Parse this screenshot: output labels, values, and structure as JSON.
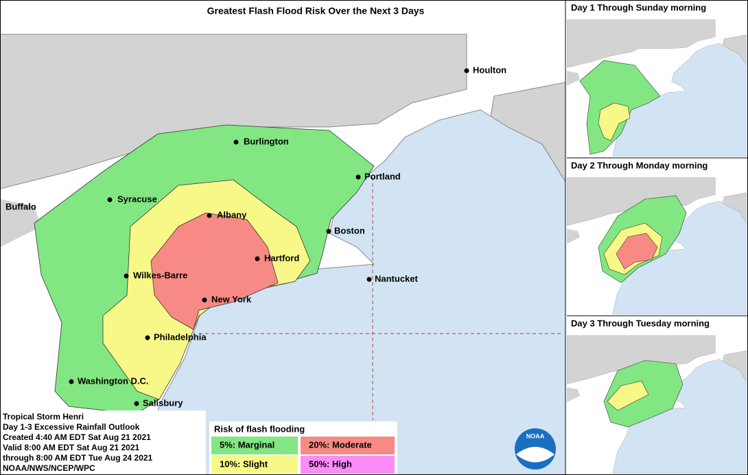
{
  "title": "Greatest Flash Flood Risk Over the Next 3 Days",
  "cities": [
    "Houlton",
    "Burlington",
    "Portland",
    "Syracuse",
    "Buffalo",
    "Albany",
    "Boston",
    "Hartford",
    "Nantucket",
    "Wilkes-Barre",
    "New York",
    "Philadelphia",
    "Washington D.C.",
    "Salisbury"
  ],
  "panels": [
    "Day 1 Through Sunday morning",
    "Day 2 Through Monday morning",
    "Day 3 Through Tuesday morning"
  ],
  "info": [
    "Tropical Storm Henri",
    "Day 1-3 Excessive Rainfall Outlook",
    "Created 4:40 AM EDT Sat Aug 21 2021",
    "Valid 8:00 AM EDT Sat Aug 21 2021",
    "through 8:00 AM EDT Tue Aug 24 2021",
    "NOAA/NWS/NCEP/WPC"
  ],
  "legend": {
    "title": "Risk of flash flooding",
    "items": [
      "5%: Marginal",
      "20%: Moderate",
      "10%: Slight",
      "50%: High"
    ]
  },
  "logo": "NOAA"
}
